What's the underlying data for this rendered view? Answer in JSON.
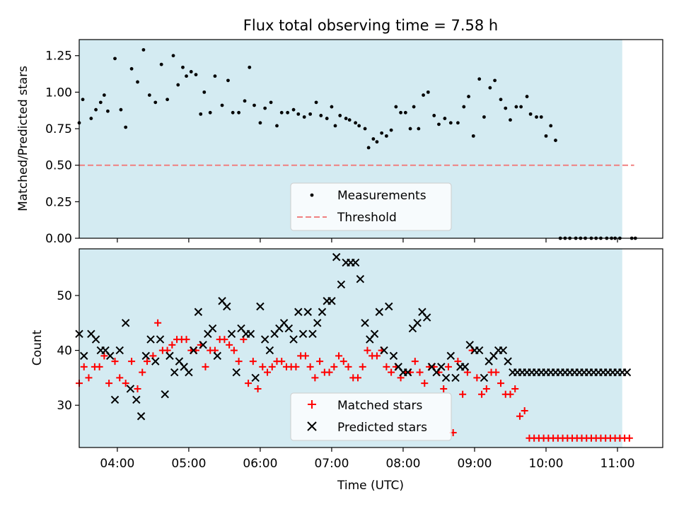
{
  "chart_data": [
    {
      "type": "scatter",
      "title": "Flux total observing time = 7.58 h",
      "xlabel": "",
      "ylabel": "Matched/Predicted stars",
      "xlim": [
        "03:28",
        "11:38"
      ],
      "ylim": [
        0,
        1.36
      ],
      "yticks": [
        0,
        0.25,
        0.5,
        0.75,
        1.0,
        1.25
      ],
      "ytick_labels": [
        "0.00",
        "0.25",
        "0.50",
        "0.75",
        "1.00",
        "1.25"
      ],
      "x_ticks": [
        "04:00",
        "05:00",
        "06:00",
        "07:00",
        "08:00",
        "09:00",
        "10:00",
        "11:00"
      ],
      "shaded_span": [
        "03:28",
        "11:04"
      ],
      "threshold": {
        "value": 0.5,
        "x_start": "03:28",
        "x_end": "11:14",
        "color": "#f08080"
      },
      "legend_position": "lower center",
      "series": [
        {
          "name": "Measurements",
          "color": "#000000",
          "x": [
            "03:28",
            "03:31",
            "03:38",
            "03:42",
            "03:46",
            "03:49",
            "03:52",
            "03:58",
            "04:03",
            "04:07",
            "04:12",
            "04:17",
            "04:22",
            "04:27",
            "04:32",
            "04:37",
            "04:42",
            "04:47",
            "04:51",
            "04:55",
            "04:58",
            "05:02",
            "05:06",
            "05:10",
            "05:13",
            "05:18",
            "05:22",
            "05:28",
            "05:33",
            "05:37",
            "05:42",
            "05:47",
            "05:51",
            "05:55",
            "06:00",
            "06:04",
            "06:09",
            "06:14",
            "06:18",
            "06:23",
            "06:28",
            "06:32",
            "06:37",
            "06:42",
            "06:47",
            "06:51",
            "06:56",
            "07:00",
            "07:03",
            "07:07",
            "07:12",
            "07:15",
            "07:20",
            "07:23",
            "07:28",
            "07:31",
            "07:35",
            "07:38",
            "07:42",
            "07:46",
            "07:50",
            "07:54",
            "07:58",
            "08:02",
            "08:06",
            "08:09",
            "08:13",
            "08:17",
            "08:21",
            "08:26",
            "08:30",
            "08:35",
            "08:40",
            "08:46",
            "08:51",
            "08:55",
            "08:59",
            "09:04",
            "09:08",
            "09:13",
            "09:17",
            "09:22",
            "09:26",
            "09:30",
            "09:35",
            "09:39",
            "09:44",
            "09:47",
            "09:52",
            "09:56",
            "10:00",
            "10:04",
            "10:08",
            "10:12",
            "10:16",
            "10:20",
            "10:25",
            "10:29",
            "10:33",
            "10:38",
            "10:42",
            "10:46",
            "10:51",
            "10:55",
            "10:58",
            "11:02",
            "11:12",
            "11:15"
          ],
          "y": [
            0.79,
            0.95,
            0.82,
            0.88,
            0.93,
            0.98,
            0.87,
            1.23,
            0.88,
            0.76,
            1.16,
            1.07,
            1.29,
            0.98,
            0.93,
            1.19,
            0.95,
            1.25,
            1.05,
            1.17,
            1.11,
            1.14,
            1.12,
            0.85,
            1.0,
            0.86,
            1.11,
            0.91,
            1.08,
            0.86,
            0.86,
            0.94,
            1.17,
            0.91,
            0.79,
            0.89,
            0.93,
            0.77,
            0.86,
            0.86,
            0.88,
            0.85,
            0.83,
            0.85,
            0.93,
            0.84,
            0.82,
            0.9,
            0.77,
            0.84,
            0.82,
            0.81,
            0.79,
            0.77,
            0.75,
            0.62,
            0.68,
            0.66,
            0.72,
            0.7,
            0.74,
            0.9,
            0.86,
            0.86,
            0.75,
            0.9,
            0.75,
            0.98,
            1.0,
            0.84,
            0.78,
            0.82,
            0.79,
            0.79,
            0.9,
            0.97,
            0.7,
            1.09,
            0.83,
            1.03,
            1.08,
            0.95,
            0.89,
            0.81,
            0.9,
            0.9,
            0.97,
            0.85,
            0.83,
            0.83,
            0.7,
            0.77,
            0.67,
            0.0,
            0.0,
            0.0,
            0.0,
            0.0,
            0.0,
            0.0,
            0.0,
            0.0,
            0.0,
            0.0,
            0.0,
            0.0,
            0.0,
            0.0
          ]
        }
      ]
    },
    {
      "type": "scatter",
      "title": "",
      "xlabel": "Time (UTC)",
      "ylabel": "Count",
      "xlim": [
        "03:28",
        "11:38"
      ],
      "ylim": [
        22.3,
        58.5
      ],
      "yticks": [
        30,
        40,
        50
      ],
      "ytick_labels": [
        "30",
        "40",
        "50"
      ],
      "x_ticks": [
        "04:00",
        "05:00",
        "06:00",
        "07:00",
        "08:00",
        "09:00",
        "10:00",
        "11:00"
      ],
      "shaded_span": [
        "03:28",
        "11:04"
      ],
      "legend_position": "lower center",
      "series": [
        {
          "name": "Matched stars",
          "marker": "plus",
          "color": "#ff0000",
          "x": [
            "03:28",
            "03:32",
            "03:36",
            "03:41",
            "03:45",
            "03:49",
            "03:53",
            "03:58",
            "04:02",
            "04:07",
            "04:12",
            "04:17",
            "04:21",
            "04:25",
            "04:30",
            "04:34",
            "04:38",
            "04:42",
            "04:46",
            "04:50",
            "04:54",
            "04:58",
            "05:02",
            "05:06",
            "05:10",
            "05:14",
            "05:18",
            "05:22",
            "05:26",
            "05:30",
            "05:34",
            "05:38",
            "05:42",
            "05:46",
            "05:50",
            "05:54",
            "05:58",
            "06:02",
            "06:06",
            "06:10",
            "06:14",
            "06:18",
            "06:22",
            "06:26",
            "06:30",
            "06:34",
            "06:38",
            "06:42",
            "06:46",
            "06:50",
            "06:54",
            "06:58",
            "07:02",
            "07:06",
            "07:10",
            "07:14",
            "07:18",
            "07:22",
            "07:26",
            "07:30",
            "07:34",
            "07:38",
            "07:42",
            "07:46",
            "07:50",
            "07:54",
            "07:58",
            "08:02",
            "08:06",
            "08:10",
            "08:14",
            "08:18",
            "08:22",
            "08:26",
            "08:30",
            "08:34",
            "08:38",
            "08:42",
            "08:46",
            "08:50",
            "08:54",
            "08:58",
            "09:02",
            "09:06",
            "09:10",
            "09:14",
            "09:18",
            "09:22",
            "09:26",
            "09:30",
            "09:34",
            "09:38",
            "09:42",
            "09:46",
            "09:50",
            "09:54",
            "09:58",
            "10:02",
            "10:06",
            "10:10",
            "10:14",
            "10:18",
            "10:22",
            "10:26",
            "10:30",
            "10:34",
            "10:38",
            "10:42",
            "10:46",
            "10:50",
            "10:54",
            "10:58",
            "11:02",
            "11:06",
            "11:10"
          ],
          "y": [
            34,
            37,
            35,
            37,
            37,
            39,
            34,
            38,
            35,
            34,
            38,
            33,
            36,
            38,
            39,
            45,
            40,
            40,
            41,
            42,
            42,
            42,
            40,
            40,
            41,
            37,
            40,
            40,
            42,
            42,
            41,
            40,
            38,
            42,
            34,
            38,
            33,
            37,
            36,
            37,
            38,
            38,
            37,
            37,
            37,
            39,
            39,
            37,
            35,
            38,
            36,
            36,
            37,
            39,
            38,
            37,
            35,
            35,
            37,
            40,
            39,
            39,
            40,
            37,
            36,
            37,
            35,
            36,
            36,
            38,
            36,
            34,
            37,
            37,
            36,
            33,
            37,
            25,
            38,
            32,
            36,
            40,
            35,
            32,
            33,
            36,
            36,
            34,
            32,
            32,
            33,
            28,
            29,
            24,
            24,
            24,
            24,
            24,
            24,
            24,
            24,
            24,
            24,
            24,
            24,
            24,
            24,
            24,
            24,
            24,
            24,
            24,
            24,
            24,
            24
          ]
        },
        {
          "name": "Predicted stars",
          "marker": "x",
          "color": "#000000",
          "x": [
            "03:28",
            "03:32",
            "03:38",
            "03:42",
            "03:46",
            "03:50",
            "03:54",
            "03:58",
            "04:02",
            "04:07",
            "04:11",
            "04:16",
            "04:20",
            "04:24",
            "04:28",
            "04:32",
            "04:36",
            "04:40",
            "04:44",
            "04:48",
            "04:52",
            "04:56",
            "05:00",
            "05:04",
            "05:08",
            "05:12",
            "05:16",
            "05:20",
            "05:24",
            "05:28",
            "05:32",
            "05:36",
            "05:40",
            "05:44",
            "05:48",
            "05:52",
            "05:56",
            "06:00",
            "06:04",
            "06:08",
            "06:12",
            "06:16",
            "06:20",
            "06:24",
            "06:28",
            "06:32",
            "06:36",
            "06:40",
            "06:44",
            "06:48",
            "06:52",
            "06:56",
            "07:00",
            "07:04",
            "07:08",
            "07:12",
            "07:16",
            "07:20",
            "07:24",
            "07:28",
            "07:32",
            "07:36",
            "07:40",
            "07:44",
            "07:48",
            "07:52",
            "07:56",
            "08:00",
            "08:04",
            "08:08",
            "08:12",
            "08:16",
            "08:20",
            "08:24",
            "08:28",
            "08:32",
            "08:36",
            "08:40",
            "08:44",
            "08:48",
            "08:52",
            "08:56",
            "09:00",
            "09:04",
            "09:08",
            "09:12",
            "09:16",
            "09:20",
            "09:24",
            "09:28",
            "09:32",
            "09:36",
            "09:40",
            "09:44",
            "09:48",
            "09:52",
            "09:56",
            "10:00",
            "10:04",
            "10:08",
            "10:12",
            "10:16",
            "10:20",
            "10:24",
            "10:28",
            "10:32",
            "10:36",
            "10:40",
            "10:44",
            "10:48",
            "10:52",
            "10:56",
            "11:00",
            "11:04",
            "11:08"
          ],
          "y": [
            43,
            39,
            43,
            42,
            40,
            40,
            39,
            31,
            40,
            45,
            33,
            31,
            28,
            39,
            42,
            38,
            42,
            32,
            39,
            36,
            38,
            37,
            36,
            40,
            47,
            41,
            43,
            44,
            39,
            49,
            48,
            43,
            36,
            44,
            43,
            43,
            35,
            48,
            42,
            40,
            43,
            44,
            45,
            44,
            42,
            47,
            43,
            47,
            43,
            45,
            47,
            49,
            49,
            57,
            52,
            56,
            56,
            56,
            53,
            45,
            42,
            43,
            47,
            40,
            48,
            39,
            37,
            36,
            36,
            44,
            45,
            47,
            46,
            37,
            36,
            37,
            35,
            39,
            35,
            37,
            37,
            41,
            40,
            40,
            35,
            38,
            39,
            40,
            40,
            38,
            36,
            36,
            36,
            36,
            36,
            36,
            36,
            36,
            36,
            36,
            36,
            36,
            36,
            36,
            36,
            36,
            36,
            36,
            36,
            36,
            36,
            36,
            36,
            36,
            36
          ]
        }
      ]
    }
  ]
}
